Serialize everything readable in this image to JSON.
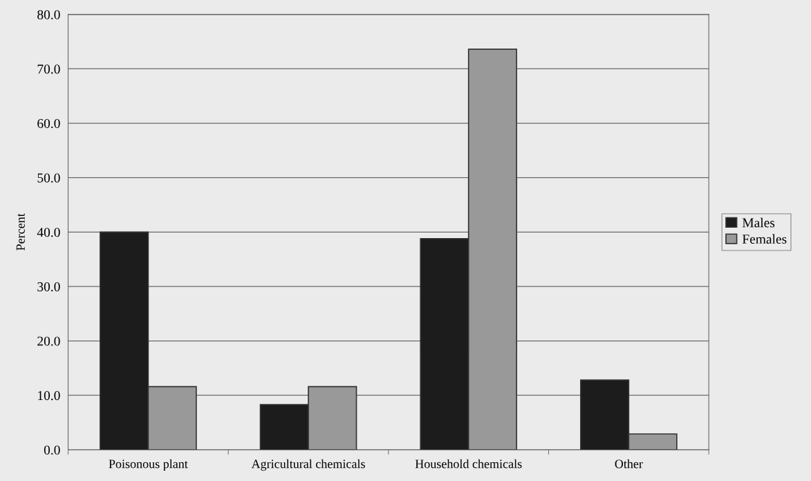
{
  "chart_data": {
    "type": "bar",
    "ylabel": "Percent",
    "categories": [
      "Poisonous plant",
      "Agricultural chemicals",
      "Household chemicals",
      "Other"
    ],
    "series": [
      {
        "name": "Males",
        "color": "#1c1c1c",
        "values": [
          40.0,
          8.3,
          38.8,
          12.8
        ]
      },
      {
        "name": "Females",
        "color": "#999999",
        "values": [
          11.6,
          11.6,
          73.6,
          2.9
        ]
      }
    ],
    "ylim": [
      0,
      80
    ],
    "yticks": [
      {
        "value": 0,
        "label": "0.0"
      },
      {
        "value": 10,
        "label": "10.0"
      },
      {
        "value": 20,
        "label": "20.0"
      },
      {
        "value": 30,
        "label": "30.0"
      },
      {
        "value": 40,
        "label": "40.0"
      },
      {
        "value": 50,
        "label": "50.0"
      },
      {
        "value": 60,
        "label": "60.0"
      },
      {
        "value": 70,
        "label": "70.0"
      },
      {
        "value": 80,
        "label": "80.0"
      }
    ],
    "grid": "y",
    "legend": "right"
  }
}
